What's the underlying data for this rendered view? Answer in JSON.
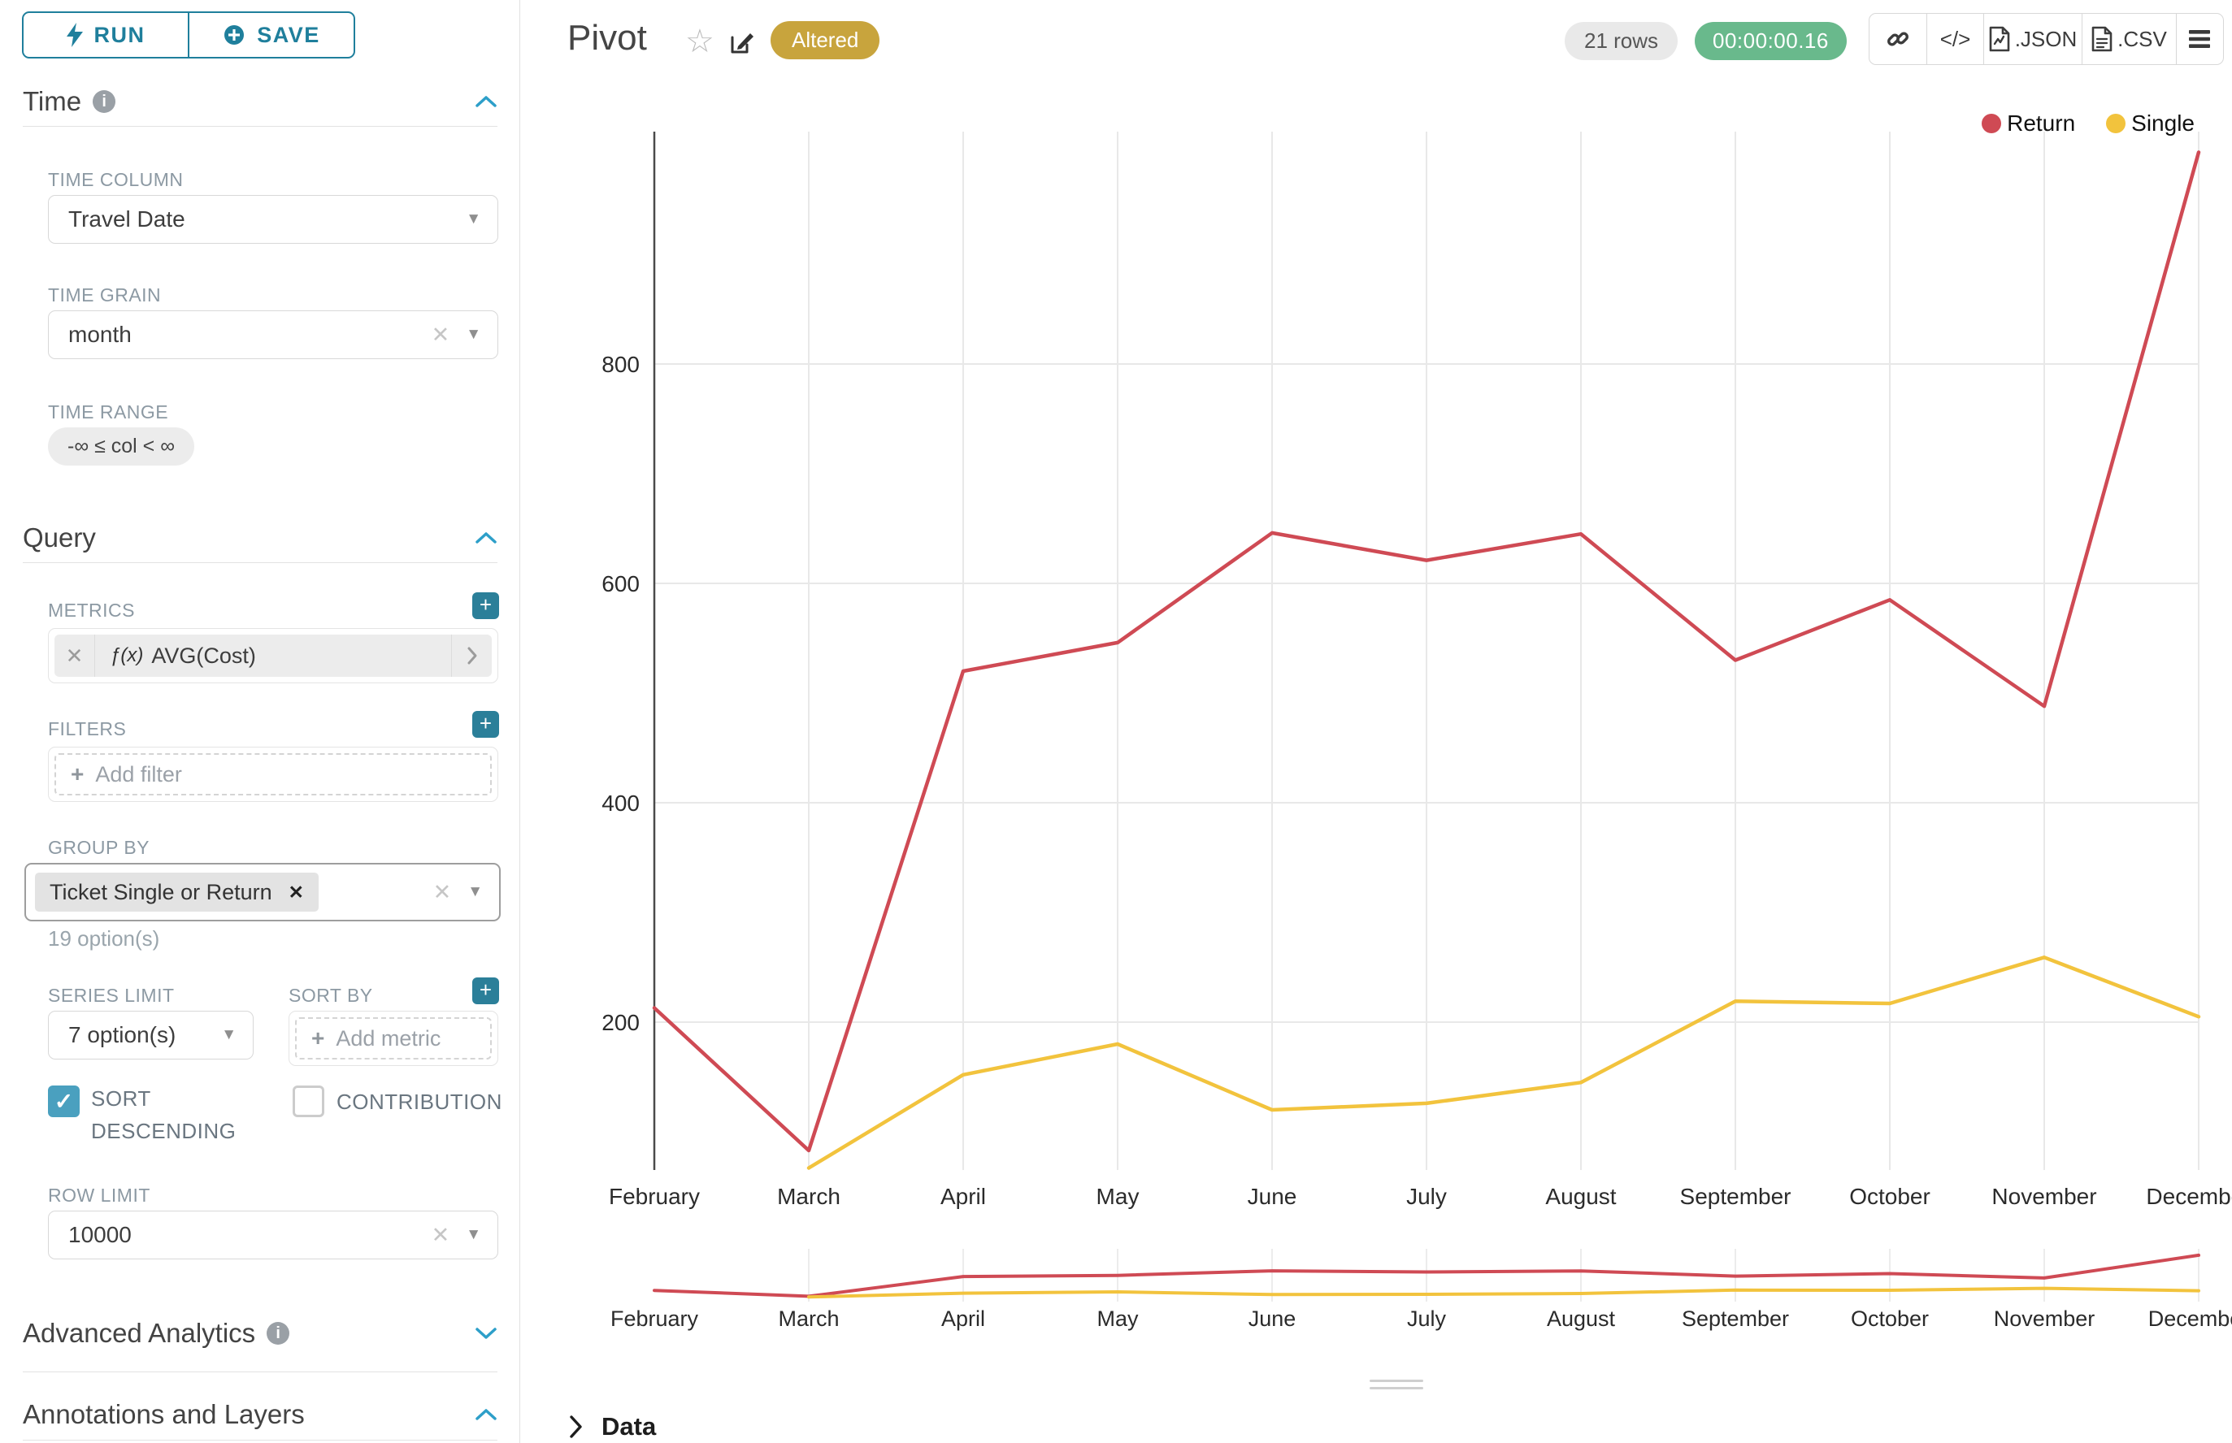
{
  "sidebar": {
    "run_label": "RUN",
    "save_label": "SAVE",
    "sections": [
      {
        "title": "Time",
        "has_info": true
      },
      {
        "title": "Query",
        "has_info": false
      },
      {
        "title": "Advanced Analytics",
        "has_info": true
      },
      {
        "title": "Annotations and Layers",
        "has_info": false
      }
    ],
    "fields": {
      "time_column": {
        "label": "TIME COLUMN",
        "value": "Travel Date"
      },
      "time_grain": {
        "label": "TIME GRAIN",
        "value": "month"
      },
      "time_range": {
        "label": "TIME RANGE",
        "value": "-∞ ≤ col < ∞"
      },
      "metrics": {
        "label": "METRICS",
        "fx": "ƒ(x)",
        "value": "AVG(Cost)"
      },
      "filters": {
        "label": "FILTERS",
        "placeholder": "Add filter"
      },
      "group_by": {
        "label": "GROUP BY",
        "chip": "Ticket Single or Return",
        "hint": "19 option(s)"
      },
      "series_limit": {
        "label": "SERIES LIMIT",
        "value": "7 option(s)"
      },
      "sort_by": {
        "label": "SORT BY",
        "placeholder": "Add metric"
      },
      "sort_descending": {
        "label": "SORT DESCENDING",
        "checked": true
      },
      "contribution": {
        "label": "CONTRIBUTION",
        "checked": false
      },
      "row_limit": {
        "label": "ROW LIMIT",
        "value": "10000"
      }
    }
  },
  "header": {
    "title": "Pivot",
    "badge_label": "Altered",
    "row_count": "21 rows",
    "timer": "00:00:00.16",
    "code_label": "</>",
    "json_label": ".JSON",
    "csv_label": ".CSV"
  },
  "data_panel": {
    "label": "Data"
  },
  "chart_data": {
    "type": "line",
    "x": [
      "February",
      "March",
      "April",
      "May",
      "June",
      "July",
      "August",
      "September",
      "October",
      "November",
      "December"
    ],
    "series": [
      {
        "name": "Return",
        "color": "#cf4a54",
        "values": [
          213,
          83,
          520,
          546,
          646,
          621,
          645,
          530,
          585,
          488,
          993
        ]
      },
      {
        "name": "Single",
        "color": "#f2c33d",
        "values": [
          null,
          67,
          152,
          180,
          120,
          126,
          145,
          219,
          217,
          259,
          205
        ]
      }
    ],
    "yticks": [
      200,
      400,
      600,
      800
    ],
    "ylim": [
      0,
      1000
    ],
    "grid": true,
    "legend_position": "top-right",
    "has_brush_minichart": true
  }
}
